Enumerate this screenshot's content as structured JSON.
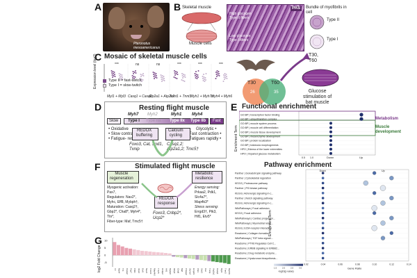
{
  "panel_labels": [
    "A",
    "B",
    "C",
    "D",
    "E",
    "F",
    "G"
  ],
  "A": {
    "species": "Pteronotus\nmesoamericanus"
  },
  "B": {
    "skeletal_muscle": "Skeletal muscle",
    "muscle_cells": "Muscle cells",
    "bundle_title": "Bundle of myofibrils in cell",
    "pas": "PAS",
    "high_glycogen": "High glycogen Type II fibers",
    "low_glycogen": "Low glycogen Type I fibers",
    "type_ii": "Type II",
    "type_i": "Type I"
  },
  "C": {
    "title": "Mosaic of skeletal muscle cells",
    "ylabel": "Expression level (log2)",
    "legend_ii": "Type II = fast-twitch",
    "legend_i": "Type I = slow-twitch",
    "genes": [
      "Myl1 + Myl3",
      "Casq1 + Casq2",
      "Atp2a1 + Atp2a2",
      "Tnnt1 + Tnnt3",
      "Myh1 + Myh7b",
      "Myh4 + Myh6"
    ],
    "sig": [
      "***",
      "ns",
      "ns",
      "***",
      "***",
      "***"
    ],
    "venn_t30": "T30",
    "venn_t60": "T60",
    "venn_left": "26",
    "venn_right": "35",
    "t30_t60": "T30,\nT60",
    "glucose": "Glucose\nstimulation of\nbat muscle"
  },
  "D": {
    "title": "Resting flight muscle",
    "slow": "Slow",
    "fast": "Fast",
    "myh7": "Myh7",
    "myh2": "Myh2",
    "myh1": "Myh1",
    "myh4": "Myh4",
    "type_i": "Type I",
    "type_iia": "Type IIa",
    "type_iix": "Type IIx",
    "type_iib": "Type IIb",
    "left_traits": [
      "• Oxidative",
      "• Slow contraction",
      "• Fatigue- resistance"
    ],
    "right_traits": [
      "Glycolytic •",
      "Fast contraction •",
      "Fatigues rapidly •"
    ],
    "redox": "REDOX\nbuffering",
    "redox_genes": "Foxo3, Cat, Sod1,\nTxnip",
    "calcium": "Calcium\ncycling",
    "calcium_genes": "Casq1,2;\nAtp2a1,2; Tmc5†"
  },
  "E": {
    "title": "Functional enrichment",
    "terms": [
      "GO:BP | transcription factor binding",
      "GO:BP | ubiquitinylation complex",
      "GO:BP | muscle system process",
      "GO:BP | muscle cell differentiation",
      "GO:BP | muscle tissue development",
      "GO:BP | mesenchyme development",
      "GO:BP | protein localization",
      "GO:BP | trabecula morphogenesis",
      "HPO | Edema of the lower extremities",
      "HPO | Impaired glucose metabolism"
    ],
    "group_metabolism": "Metabolism",
    "group_muscle": "Muscle\ndevelopment",
    "xlabel": "Gene Ratio",
    "ylabel": "Enrichment Term",
    "x_ticks": [
      "0.5",
      "1.0"
    ],
    "col_down": "Down",
    "col_up": "Up"
  },
  "F": {
    "title": "Stimulated flight muscle",
    "regen": "Muscle\nregeneration",
    "metab": "Metabolic\nresilience",
    "regen_lines": [
      "Myogenic activation:",
      "Pax7,",
      "Regulators: Nav2*,",
      "Myhc, Eff8, Mybph†,",
      "Maturation: Casq2†,",
      "Gbp2*, Cha8*, Myh4*,",
      "Ttn*,",
      "Fiber-type: Maf, Tmc5†"
    ],
    "metab_lines": [
      "Energy sensing:",
      "Prkaa2, Pdk1,",
      "Slc4a7*,",
      "Map4k3*",
      "Stress sensing:",
      "Errgd3†, Pik3,",
      "Hif1, Etv5*"
    ],
    "redox": "REDOX\nresponse",
    "redox_genes": "Foxo3, Cnbp2*,\nUcp2*"
  },
  "pathway": {
    "title": "Pathway enrichment",
    "terms": [
      "Panther | Gonadotropin signaling pathway",
      "Panther | Cytoskeletal regulation",
      "KEGG | Proteasome pathway",
      "Panther | PI3 kinase pathway",
      "KEGG | Adrenergic signaling in c...",
      "Panther | Notch signaling pathway",
      "KEGG | Adrenergic signaling in c...",
      "WikiPathways | Focal adhesion",
      "KEGG | Focal adhesion",
      "WikiPathways | Cardiac progenitor...",
      "WikiPathways | Myometrial relax...",
      "KEGG | ECM-receptor interaction",
      "Reactome | Collagen formation",
      "WikiPathways | TGF beta signali...",
      "Reactome | PTK6 Regulates Cell C...",
      "Reactome | ERBB signaling in ERBB2...",
      "Reactome | Drug metabolic enzyme...",
      "Reactome | Hyaluronan biosynthesis..."
    ],
    "ylabel": "Enrichment Term",
    "xlabel": "Gene Ratio",
    "x_ticks": [
      "0.02",
      "0.04",
      "0.06",
      "0.08",
      "0.10",
      "0.12",
      "0.14"
    ],
    "colorbar_label": "-log10(p.value)",
    "colorbar_ticks": [
      "1.5",
      "2.0",
      "2.5",
      "3.0"
    ],
    "col_down": "Down",
    "col_up": "Up",
    "accent": "#1f2f6b"
  },
  "G": {
    "ylabel": "log2 Fold Change",
    "y_ticks": [
      "10",
      "5",
      "0",
      "-5"
    ],
    "genes": [
      "L3",
      "Myh4",
      "Ttn",
      "Casq2",
      "Pax7",
      "Pdk1",
      "Ucp2",
      "Etv5",
      "Nav2",
      "Foxo3",
      "Map4k3",
      "Tmc5",
      "Cnbp2",
      "Hif1",
      "Mybph",
      "Gbp2",
      "Cha8",
      "Maf",
      "Prkaa2",
      "Slc4a7",
      "Errgd3",
      "Pik3",
      "Sod1",
      "Cat",
      "Txnip",
      "Atp2a1",
      "Casq1",
      "Myl1",
      "Tnnt3",
      "Myh7b"
    ]
  },
  "chart_data": [
    {
      "type": "scatter",
      "title": "Functional enrichment",
      "xlabel": "Gene Ratio",
      "ylabel": "Enrichment Term",
      "categories": [
        "GO:BP | transcription factor binding",
        "GO:BP | ubiquitinylation complex",
        "GO:BP | muscle system process",
        "GO:BP | muscle cell differentiation",
        "GO:BP | muscle tissue development",
        "GO:BP | mesenchyme development",
        "GO:BP | protein localization",
        "GO:BP | trabecula morphogenesis",
        "HPO | Edema of the lower extremities",
        "HPO | Impaired glucose metabolism"
      ],
      "series": [
        {
          "name": "Down",
          "values": [
            0,
            0,
            0.5,
            0.5,
            0.5,
            0.5,
            0.5,
            0.5,
            0.5,
            0.5
          ]
        },
        {
          "name": "Up",
          "values": [
            1.0,
            1.0,
            0,
            0,
            0,
            0,
            0,
            0,
            0,
            0
          ]
        }
      ]
    },
    {
      "type": "scatter",
      "title": "Pathway enrichment",
      "xlabel": "Gene Ratio",
      "ylabel": "Enrichment Term",
      "categories": [
        "Panther | Gonadotropin signaling pathway",
        "Panther | Cytoskeletal regulation",
        "KEGG | Proteasome pathway",
        "Panther | PI3 kinase pathway",
        "KEGG | Adrenergic signaling in c...",
        "Panther | Notch signaling pathway",
        "KEGG | Adrenergic signaling in c...",
        "WikiPathways | Focal adhesion",
        "KEGG | Focal adhesion",
        "WikiPathways | Cardiac progenitor...",
        "WikiPathways | Myometrial relax...",
        "KEGG | ECM-receptor interaction",
        "Reactome | Collagen formation",
        "WikiPathways | TGF beta signali...",
        "Reactome | PTK6 Regulates Cell C...",
        "Reactome | ERBB signaling in ERBB2...",
        "Reactome | Drug metabolic enzyme...",
        "Reactome | Hyaluronan biosynthesis..."
      ],
      "series": [
        {
          "name": "Down",
          "values": [
            0.04,
            0.04,
            0.04,
            0.04,
            0.04,
            0.04,
            0.04,
            0.04,
            0.04,
            0.04,
            0.04,
            0.04,
            0.04,
            0.04,
            0.04,
            0.04,
            0.04,
            0.04
          ]
        },
        {
          "name": "Up",
          "values": [
            0.1,
            0.12,
            0.09,
            0.11,
            0.1,
            0.12,
            0.11,
            0.1,
            0.1,
            0.12,
            0.11,
            0.1,
            0.12,
            0.11,
            0,
            0,
            0,
            0
          ]
        }
      ]
    },
    {
      "type": "bar",
      "ylabel": "log2 Fold Change",
      "ylim": [
        -8,
        12
      ],
      "categories": [
        "L3",
        "Myh4",
        "Ttn",
        "Casq2",
        "Pax7",
        "Pdk1",
        "Ucp2",
        "Etv5",
        "Nav2",
        "Foxo3",
        "Map4k3",
        "Tmc5",
        "Cnbp2",
        "Hif1",
        "Mybph",
        "Gbp2",
        "Cha8",
        "Maf",
        "Prkaa2",
        "Slc4a7",
        "Errgd3",
        "Pik3",
        "Sod1",
        "Cat",
        "Txnip",
        "Atp2a1",
        "Casq1",
        "Myl1",
        "Tnnt3",
        "Myh7b"
      ],
      "values": [
        9,
        7,
        6,
        5,
        4.5,
        4,
        3.5,
        3,
        2.8,
        2.5,
        2.2,
        2,
        1.8,
        1.5,
        1.2,
        -1,
        -1.3,
        -1.6,
        -2,
        -2.3,
        -2.6,
        -3,
        -3.3,
        -3.6,
        -4,
        -4.3,
        -4.7,
        -5,
        -5.4,
        -6
      ]
    }
  ]
}
